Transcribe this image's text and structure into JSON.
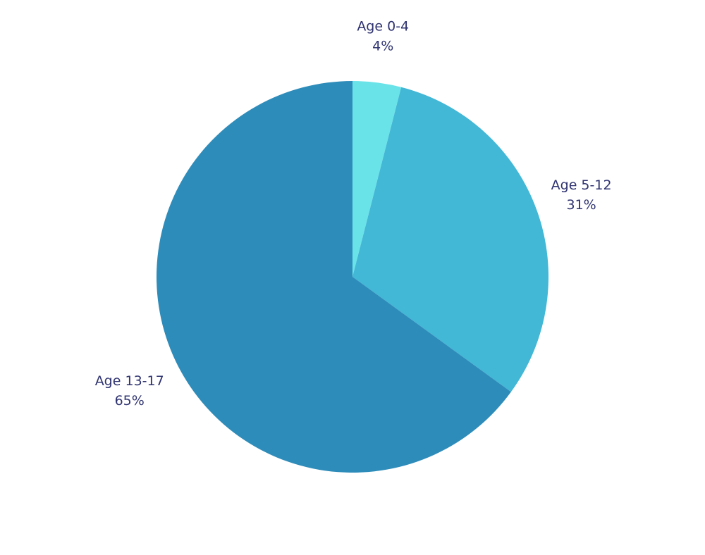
{
  "chart_data": {
    "type": "pie",
    "title": "",
    "categories": [
      "Age 0-4",
      "Age 5-12",
      "Age 13-17"
    ],
    "values": [
      4,
      31,
      65
    ],
    "value_labels": [
      "4%",
      "31%",
      "65%"
    ],
    "colors": [
      "#6ae3e8",
      "#42b7d6",
      "#2e8cba"
    ],
    "label_color": "#2f3370",
    "legend": "none",
    "start_angle": "12 o'clock",
    "direction": "clockwise"
  }
}
